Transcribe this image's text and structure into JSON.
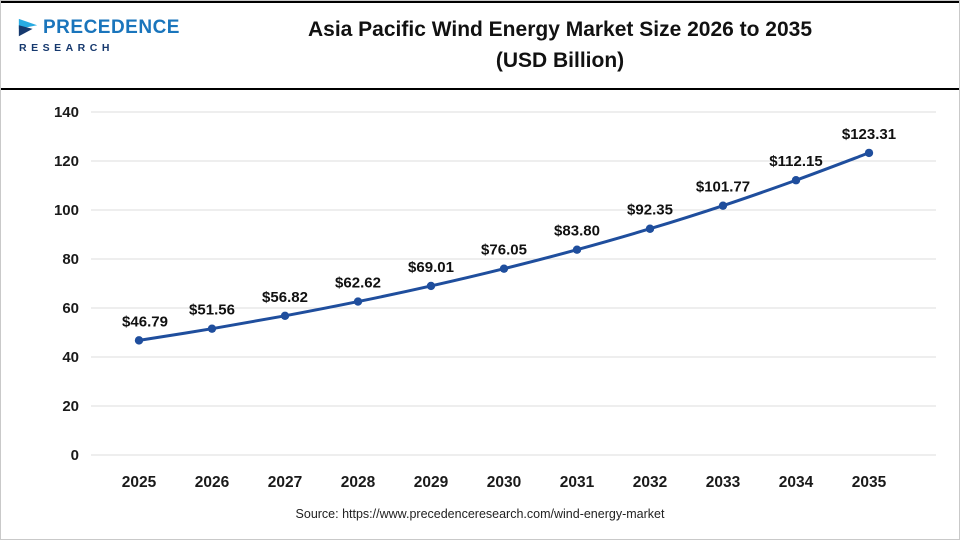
{
  "header": {
    "title_line1": "Asia Pacific Wind Energy Market Size 2026 to 2035",
    "title_line2": "(USD Billion)",
    "logo": {
      "line1": "PRECEDENCE",
      "line2": "RESEARCH"
    }
  },
  "chart_data": {
    "type": "line",
    "title": "Asia Pacific Wind Energy Market Size 2026 to 2035 (USD Billion)",
    "categories": [
      "2025",
      "2026",
      "2027",
      "2028",
      "2029",
      "2030",
      "2031",
      "2032",
      "2033",
      "2034",
      "2035"
    ],
    "values": [
      46.79,
      51.56,
      56.82,
      62.62,
      69.01,
      76.05,
      83.8,
      92.35,
      101.77,
      112.15,
      123.31
    ],
    "point_labels": [
      "$46.79",
      "$51.56",
      "$56.82",
      "$62.62",
      "$69.01",
      "$76.05",
      "$83.80",
      "$92.35",
      "$101.77",
      "$112.15",
      "$123.31"
    ],
    "xlabel": "",
    "ylabel": "",
    "ylim": [
      0,
      140
    ],
    "ytick_step": 20,
    "grid": true,
    "legend": "none",
    "line_color": "#1f4e9d",
    "grid_color": "#dcdcdc",
    "label_color": "#111111",
    "tick_color": "#1a1a1a"
  },
  "footer": {
    "source": "Source: https://www.precedenceresearch.com/wind-energy-market"
  }
}
